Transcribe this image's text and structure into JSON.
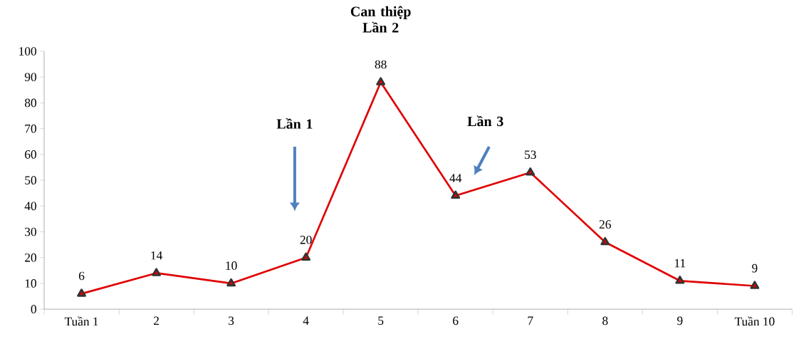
{
  "chart_data": {
    "type": "line",
    "categories": [
      "Tuần 1",
      "2",
      "3",
      "4",
      "5",
      "6",
      "7",
      "8",
      "9",
      "Tuần 10"
    ],
    "values": [
      6,
      14,
      10,
      20,
      88,
      44,
      53,
      26,
      11,
      9
    ],
    "color": "#e00000",
    "marker": "triangle",
    "line_style": "solid",
    "data_labels": true,
    "grid": false,
    "ylim": [
      0,
      100
    ],
    "yticks": [
      0,
      10,
      20,
      30,
      40,
      50,
      60,
      70,
      80,
      90,
      100
    ],
    "annotations": [
      "Lần 1",
      "Can thiệp Lần 2",
      "Lần 3"
    ]
  }
}
